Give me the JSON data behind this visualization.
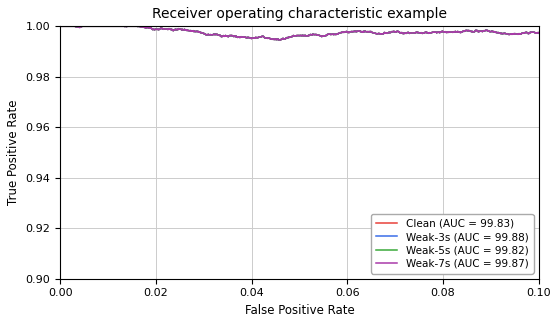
{
  "title": "Receiver operating characteristic example",
  "xlabel": "False Positive Rate",
  "ylabel": "True Positive Rate",
  "xlim": [
    0.0,
    0.1
  ],
  "ylim": [
    0.9,
    1.0
  ],
  "xticks": [
    0.0,
    0.02,
    0.04,
    0.06,
    0.08,
    0.1
  ],
  "yticks": [
    0.9,
    0.92,
    0.94,
    0.96,
    0.98,
    1.0
  ],
  "legend_labels": [
    "Clean (AUC = 99.83)",
    "Weak-3s (AUC = 99.88)",
    "Weak-5s (AUC = 99.82)",
    "Weak-7s (AUC = 99.87)"
  ],
  "legend_colors": [
    "#e8413b",
    "#3a6de8",
    "#3aaa3a",
    "#aa3aaa"
  ],
  "background_color": "#ffffff",
  "grid_color": "#cccccc",
  "title_fontsize": 10,
  "label_fontsize": 8.5,
  "tick_fontsize": 8,
  "legend_fontsize": 7.5
}
